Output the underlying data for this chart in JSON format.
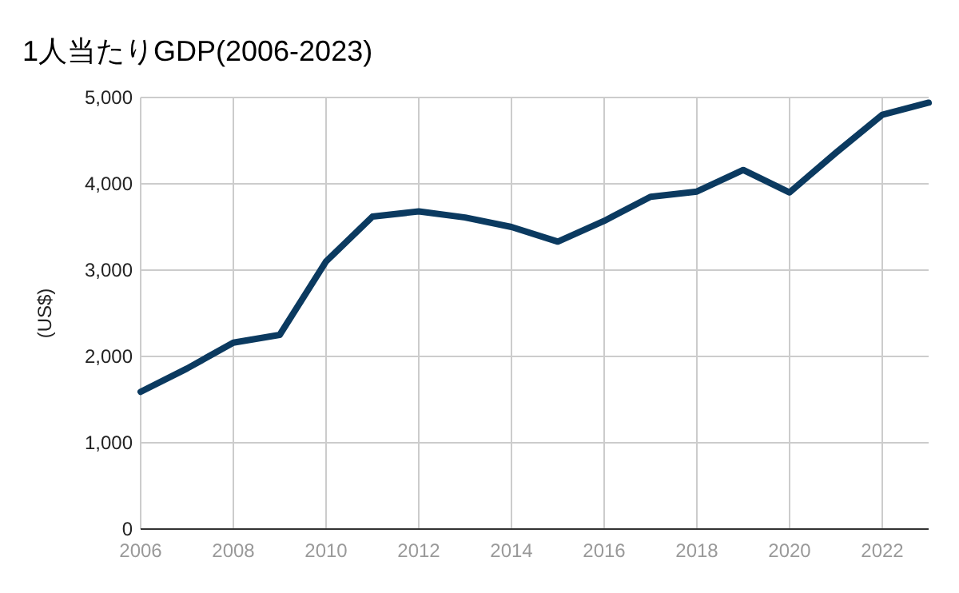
{
  "chart_data": {
    "type": "line",
    "title": "1人当たりGDP(2006-2023)",
    "ylabel": "(US$)",
    "x": [
      2006,
      2007,
      2008,
      2009,
      2010,
      2011,
      2012,
      2013,
      2014,
      2015,
      2016,
      2017,
      2018,
      2019,
      2020,
      2021,
      2022,
      2023
    ],
    "series": [
      {
        "color": "#0b3a60",
        "values": [
          1590,
          1860,
          2160,
          2250,
          3100,
          3620,
          3680,
          3610,
          3500,
          3330,
          3570,
          3850,
          3910,
          4160,
          3900,
          4360,
          4800,
          4940
        ]
      }
    ],
    "xlim": [
      2006,
      2023
    ],
    "xticks": [
      2006,
      2008,
      2010,
      2012,
      2014,
      2016,
      2018,
      2020,
      2022
    ],
    "ylim": [
      0,
      5000
    ],
    "yticks": [
      {
        "value": 0,
        "label": "0"
      },
      {
        "value": 1000,
        "label": "1,000"
      },
      {
        "value": 2000,
        "label": "2,000"
      },
      {
        "value": 3000,
        "label": "3,000"
      },
      {
        "value": 4000,
        "label": "4,000"
      },
      {
        "value": 5000,
        "label": "5,000"
      }
    ],
    "grid": true,
    "marker": "none",
    "line_style": "solid"
  }
}
